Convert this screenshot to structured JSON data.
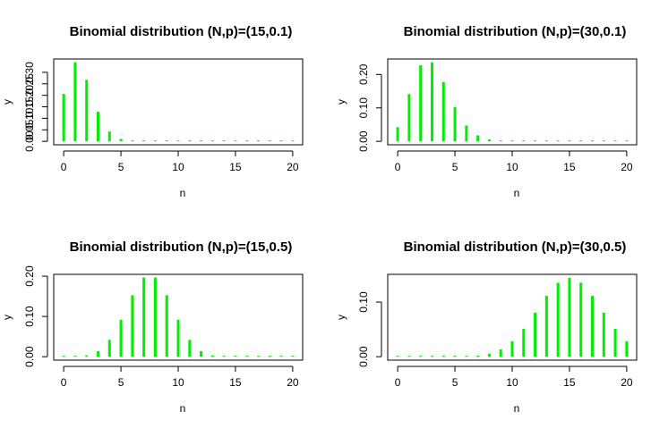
{
  "chart_data": [
    {
      "type": "bar",
      "title": "Binomial distribution (N,p)=(15,0.1)",
      "xlabel": "n",
      "ylabel": "y",
      "xlim": [
        0,
        20
      ],
      "ylim": [
        0,
        0.343
      ],
      "xticks": [
        "0",
        "5",
        "10",
        "15",
        "20"
      ],
      "yticks": [
        "0.00",
        "0.05",
        "0.10",
        "0.15",
        "0.20",
        "0.25",
        "0.30"
      ],
      "ytick_values": [
        0,
        0.05,
        0.1,
        0.15,
        0.2,
        0.25,
        0.3
      ],
      "x": [
        0,
        1,
        2,
        3,
        4,
        5,
        6,
        7,
        8,
        9,
        10,
        11,
        12,
        13,
        14,
        15,
        16,
        17,
        18,
        19,
        20
      ],
      "values": [
        0.2059,
        0.3432,
        0.2669,
        0.1285,
        0.0428,
        0.0105,
        0.0019,
        0.0003,
        0,
        0,
        0,
        0,
        0,
        0,
        0,
        0,
        0,
        0,
        0,
        0,
        0
      ],
      "color": "#00ee00"
    },
    {
      "type": "bar",
      "title": "Binomial distribution (N,p)=(30,0.1)",
      "xlabel": "n",
      "ylabel": "y",
      "xlim": [
        0,
        20
      ],
      "ylim": [
        0,
        0.236
      ],
      "xticks": [
        "0",
        "5",
        "10",
        "15",
        "20"
      ],
      "yticks": [
        "0.00",
        "0.10",
        "0.20"
      ],
      "ytick_values": [
        0,
        0.1,
        0.2
      ],
      "x": [
        0,
        1,
        2,
        3,
        4,
        5,
        6,
        7,
        8,
        9,
        10,
        11,
        12,
        13,
        14,
        15,
        16,
        17,
        18,
        19,
        20
      ],
      "values": [
        0.0424,
        0.1413,
        0.2277,
        0.2361,
        0.1771,
        0.1023,
        0.0474,
        0.018,
        0.0058,
        0.0016,
        0.0004,
        0.0001,
        0,
        0,
        0,
        0,
        0,
        0,
        0,
        0,
        0
      ],
      "color": "#00ee00"
    },
    {
      "type": "bar",
      "title": "Binomial distribution (N,p)=(15,0.5)",
      "xlabel": "n",
      "ylabel": "y",
      "xlim": [
        0,
        20
      ],
      "ylim": [
        0,
        0.196
      ],
      "xticks": [
        "0",
        "5",
        "10",
        "15",
        "20"
      ],
      "yticks": [
        "0.00",
        "0.10",
        "0.20"
      ],
      "ytick_values": [
        0,
        0.1,
        0.2
      ],
      "x": [
        0,
        1,
        2,
        3,
        4,
        5,
        6,
        7,
        8,
        9,
        10,
        11,
        12,
        13,
        14,
        15,
        16,
        17,
        18,
        19,
        20
      ],
      "values": [
        3e-05,
        0.0005,
        0.0032,
        0.0139,
        0.0417,
        0.0916,
        0.1527,
        0.1964,
        0.1964,
        0.1527,
        0.0916,
        0.0417,
        0.0139,
        0.0032,
        0.0005,
        3e-05,
        0,
        0,
        0,
        0,
        0
      ],
      "color": "#00ee00"
    },
    {
      "type": "bar",
      "title": "Binomial distribution (N,p)=(30,0.5)",
      "xlabel": "n",
      "ylabel": "y",
      "xlim": [
        0,
        20
      ],
      "ylim": [
        0,
        0.1445
      ],
      "xticks": [
        "0",
        "5",
        "10",
        "15",
        "20"
      ],
      "yticks": [
        "0.00",
        "0.10"
      ],
      "ytick_values": [
        0,
        0.1
      ],
      "x": [
        0,
        1,
        2,
        3,
        4,
        5,
        6,
        7,
        8,
        9,
        10,
        11,
        12,
        13,
        14,
        15,
        16,
        17,
        18,
        19,
        20
      ],
      "values": [
        0,
        0,
        0,
        0,
        3e-05,
        0.0001,
        0.0006,
        0.0019,
        0.0055,
        0.0133,
        0.028,
        0.0509,
        0.0806,
        0.1115,
        0.1354,
        0.1445,
        0.1354,
        0.1115,
        0.0806,
        0.0509,
        0.028
      ],
      "color": "#00ee00"
    }
  ]
}
